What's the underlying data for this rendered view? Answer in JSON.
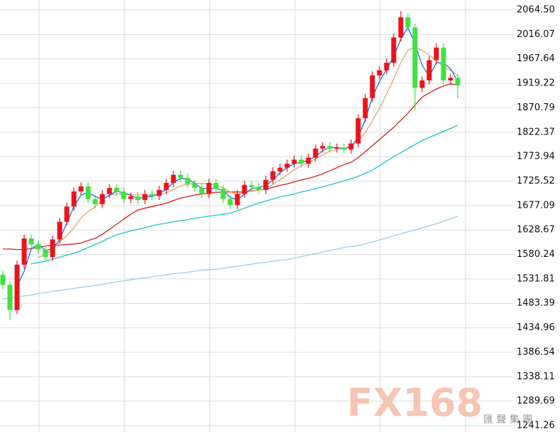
{
  "chart_data": {
    "type": "candlestick",
    "up_color": "#e8141c",
    "down_color": "#3fe23f",
    "ylim": [
      1241.26,
      2064.5
    ],
    "yticks": [
      {
        "value": 2064.5,
        "label": "2064.50"
      },
      2016.07,
      1967.64,
      1919.22,
      1870.79,
      1822.37,
      1773.94,
      1725.52,
      1677.09,
      1628.67,
      1580.24,
      1531.81,
      1483.39,
      1434.96,
      1386.54,
      1338.11,
      1289.69,
      1241.26
    ],
    "grid": true,
    "open": [
      1540,
      1520,
      1470,
      1560,
      1612,
      1600,
      1590,
      1575,
      1610,
      1645,
      1675,
      1705,
      1715,
      1690,
      1680,
      1700,
      1712,
      1705,
      1690,
      1695,
      1688,
      1700,
      1696,
      1708,
      1722,
      1738,
      1732,
      1720,
      1712,
      1700,
      1722,
      1710,
      1690,
      1678,
      1700,
      1718,
      1714,
      1708,
      1728,
      1745,
      1752,
      1760,
      1768,
      1760,
      1772,
      1790,
      1795,
      1790,
      1792,
      1788,
      1800,
      1850,
      1890,
      1935,
      1945,
      1960,
      2010,
      2050,
      2030,
      1910,
      1925,
      1965,
      1990,
      1925,
      1930
    ],
    "high": [
      1548,
      1528,
      1568,
      1620,
      1620,
      1608,
      1598,
      1618,
      1653,
      1683,
      1713,
      1723,
      1723,
      1698,
      1708,
      1720,
      1720,
      1713,
      1703,
      1703,
      1708,
      1708,
      1716,
      1730,
      1746,
      1746,
      1740,
      1728,
      1720,
      1730,
      1730,
      1718,
      1698,
      1708,
      1726,
      1726,
      1722,
      1736,
      1753,
      1760,
      1768,
      1776,
      1776,
      1780,
      1798,
      1803,
      1803,
      1800,
      1800,
      1808,
      1858,
      1898,
      1943,
      1953,
      1968,
      2018,
      2062,
      2058,
      2038,
      1933,
      1973,
      1998,
      1998,
      1938,
      1938
    ],
    "low": [
      1512,
      1450,
      1462,
      1552,
      1592,
      1582,
      1567,
      1567,
      1602,
      1637,
      1667,
      1697,
      1682,
      1672,
      1672,
      1692,
      1697,
      1682,
      1682,
      1680,
      1680,
      1688,
      1688,
      1700,
      1714,
      1724,
      1712,
      1704,
      1692,
      1692,
      1702,
      1682,
      1670,
      1670,
      1692,
      1706,
      1700,
      1700,
      1720,
      1737,
      1744,
      1752,
      1752,
      1752,
      1764,
      1782,
      1782,
      1782,
      1780,
      1780,
      1792,
      1842,
      1882,
      1927,
      1937,
      1952,
      2002,
      2022,
      1865,
      1902,
      1917,
      1957,
      1917,
      1917,
      1890
    ],
    "close": [
      1520,
      1470,
      1560,
      1612,
      1600,
      1590,
      1575,
      1610,
      1645,
      1675,
      1705,
      1715,
      1690,
      1680,
      1700,
      1712,
      1705,
      1690,
      1695,
      1688,
      1700,
      1696,
      1708,
      1722,
      1738,
      1732,
      1720,
      1712,
      1700,
      1722,
      1710,
      1690,
      1678,
      1700,
      1718,
      1714,
      1708,
      1728,
      1745,
      1752,
      1760,
      1768,
      1760,
      1772,
      1790,
      1795,
      1790,
      1792,
      1788,
      1800,
      1850,
      1890,
      1935,
      1945,
      1960,
      2010,
      2050,
      2030,
      1910,
      1925,
      1965,
      1990,
      1925,
      1930,
      1915
    ],
    "series": [
      {
        "color": "#9fcde3",
        "values": [
          1492,
          1494,
          1496,
          1498,
          1500,
          1503,
          1505,
          1507,
          1509,
          1511,
          1513,
          1515,
          1517,
          1519,
          1521,
          1524,
          1526,
          1528,
          1530,
          1532,
          1534,
          1536,
          1538,
          1540,
          1542,
          1544,
          1545,
          1547,
          1549,
          1550,
          1551,
          1553,
          1555,
          1557,
          1559,
          1561,
          1563,
          1565,
          1567,
          1569,
          1570,
          1573,
          1576,
          1579,
          1582,
          1585,
          1588,
          1591,
          1594,
          1596,
          1598,
          1601,
          1605,
          1609,
          1613,
          1617,
          1621,
          1625,
          1629,
          1633,
          1637,
          1641,
          1646,
          1651,
          1656
        ]
      },
      {
        "color": "#22c4c4",
        "values": [
          null,
          null,
          null,
          null,
          1562,
          1564,
          1567,
          1571,
          1575,
          1579,
          1583,
          1588,
          1594,
          1600,
          1606,
          1613,
          1619,
          1623,
          1627,
          1630,
          1633,
          1637,
          1640,
          1642,
          1645,
          1647,
          1649,
          1652,
          1654,
          1656,
          1658,
          1660,
          1662,
          1667,
          1672,
          1677,
          1682,
          1686,
          1690,
          1694,
          1697,
          1700,
          1704,
          1707,
          1711,
          1714,
          1718,
          1722,
          1726,
          1730,
          1735,
          1741,
          1747,
          1756,
          1765,
          1774,
          1782,
          1790,
          1798,
          1806,
          1812,
          1818,
          1824,
          1830,
          1836
        ]
      },
      {
        "color": "#d81e1e",
        "values": [
          1591,
          1591,
          1590,
          1590,
          1592,
          1594,
          1597,
          1598,
          1599,
          1600,
          1601,
          1603,
          1608,
          1612,
          1620,
          1630,
          1640,
          1650,
          1660,
          1668,
          1672,
          1675,
          1678,
          1682,
          1687,
          1692,
          1695,
          1698,
          1700,
          1702,
          1703,
          1704,
          1704,
          1704,
          1704,
          1706,
          1708,
          1710,
          1713,
          1717,
          1720,
          1724,
          1728,
          1731,
          1735,
          1740,
          1746,
          1752,
          1758,
          1763,
          1772,
          1784,
          1796,
          1808,
          1820,
          1832,
          1846,
          1860,
          1876,
          1892,
          1900,
          1908,
          1914,
          1918,
          1916
        ]
      },
      {
        "color": "#e3a36f",
        "values": [
          null,
          null,
          null,
          null,
          null,
          1575,
          1580,
          1590,
          1605,
          1618,
          1633,
          1653,
          1665,
          1675,
          1688,
          1698,
          1700,
          1700,
          1699,
          1698,
          1698,
          1697,
          1699,
          1702,
          1709,
          1716,
          1719,
          1721,
          1721,
          1720,
          1717,
          1712,
          1704,
          1700,
          1703,
          1707,
          1708,
          1711,
          1719,
          1728,
          1738,
          1748,
          1756,
          1762,
          1770,
          1778,
          1785,
          1789,
          1791,
          1794,
          1805,
          1822,
          1845,
          1870,
          1898,
          1928,
          1960,
          1985,
          1990,
          1985,
          1975,
          1965,
          1952,
          1945,
          1935
        ]
      },
      {
        "color": "#1e6fe6",
        "values": [
          null,
          null,
          1517,
          1547,
          1591,
          1601,
          1588,
          1592,
          1610,
          1643,
          1675,
          1698,
          1703,
          1695,
          1690,
          1697,
          1706,
          1702,
          1697,
          1691,
          1694,
          1695,
          1701,
          1709,
          1723,
          1731,
          1730,
          1721,
          1711,
          1711,
          1711,
          1707,
          1693,
          1689,
          1699,
          1711,
          1713,
          1717,
          1727,
          1742,
          1752,
          1760,
          1763,
          1767,
          1774,
          1786,
          1792,
          1792,
          1790,
          1793,
          1813,
          1847,
          1892,
          1923,
          1947,
          1972,
          2007,
          2030,
          1997,
          1955,
          1933,
          1960,
          1960,
          1948,
          1923
        ]
      }
    ],
    "watermark": "FX168",
    "watermark_sub": "匯 聲 集 團"
  }
}
